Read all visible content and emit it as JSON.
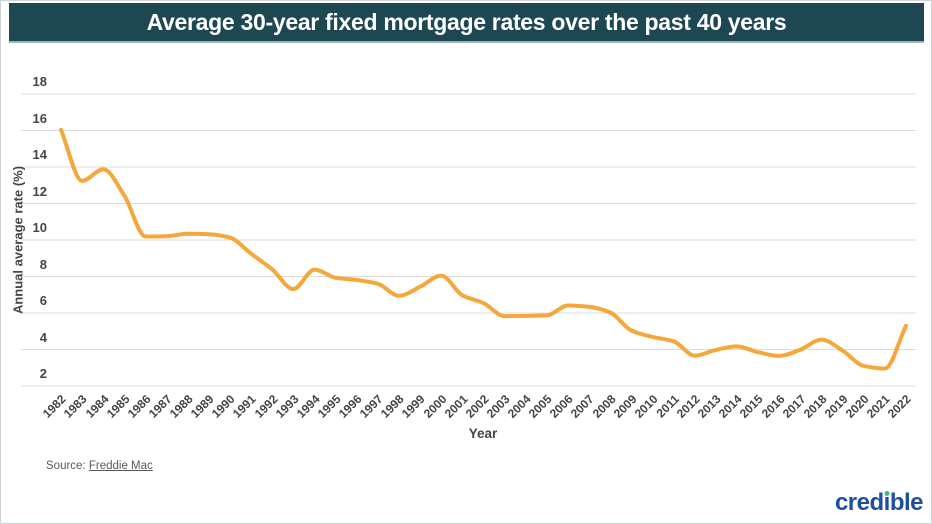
{
  "header": {
    "title": "Average 30-year fixed mortgage rates over the past 40 years"
  },
  "chart_data": {
    "type": "line",
    "title": "Average 30-year fixed mortgage rates over the past 40 years",
    "x": [
      1982,
      1983,
      1984,
      1985,
      1986,
      1987,
      1988,
      1989,
      1990,
      1991,
      1992,
      1993,
      1994,
      1995,
      1996,
      1997,
      1998,
      1999,
      2000,
      2001,
      2002,
      2003,
      2004,
      2005,
      2006,
      2007,
      2008,
      2009,
      2010,
      2011,
      2012,
      2013,
      2014,
      2015,
      2016,
      2017,
      2018,
      2019,
      2020,
      2021,
      2022
    ],
    "series": [
      {
        "name": "Average 30-year fixed mortgage rate (%)",
        "values": [
          16.04,
          13.24,
          13.88,
          12.43,
          10.19,
          10.21,
          10.34,
          10.32,
          10.13,
          9.25,
          8.39,
          7.31,
          8.38,
          7.93,
          7.81,
          7.6,
          6.94,
          7.44,
          8.05,
          6.97,
          6.54,
          5.83,
          5.84,
          5.87,
          6.41,
          6.34,
          6.03,
          5.04,
          4.69,
          4.45,
          3.66,
          3.98,
          4.17,
          3.85,
          3.65,
          3.99,
          4.54,
          3.94,
          3.1,
          2.96,
          5.3
        ]
      }
    ],
    "xlabel": "Year",
    "ylabel": "Annual average rate (%)",
    "ylim": [
      2,
      18
    ],
    "yticks": [
      18,
      16,
      14,
      12,
      10,
      8,
      6,
      4,
      2
    ],
    "grid": true,
    "legend": false
  },
  "footer": {
    "source_label": "Source:",
    "source_link": "Freddie Mac",
    "logo_text": "credible"
  },
  "colors": {
    "header_bg": "#1D4852",
    "line": "#F5A73B",
    "grid": "#DCDCDC",
    "label": "#454547",
    "logo_blue": "#1E4F9E",
    "logo_green": "#3FBA7D"
  }
}
